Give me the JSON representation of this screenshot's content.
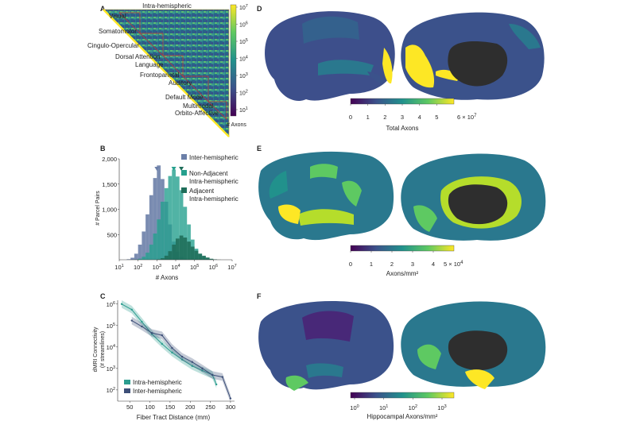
{
  "panels": {
    "A": {
      "letter": "A",
      "title": "Intra-hemispheric",
      "networks": [
        "Visual",
        "Somatomotor",
        "Cingulo-Opercular",
        "Dorsal Attention",
        "Language",
        "Frontoparietal",
        "Auditory",
        "Default Mode",
        "Multimodal",
        "Orbito-Affective"
      ],
      "colorbar": {
        "ticks": [
          {
            "base": "10",
            "exp": "7"
          },
          {
            "base": "10",
            "exp": "6"
          },
          {
            "base": "10",
            "exp": "5"
          },
          {
            "base": "10",
            "exp": "4"
          },
          {
            "base": "10",
            "exp": "3"
          },
          {
            "base": "10",
            "exp": "2"
          },
          {
            "base": "10",
            "exp": "1"
          }
        ],
        "label": "# Axons"
      },
      "colors": {
        "low": "#440154",
        "mid": "#21918c",
        "high": "#fde725"
      }
    },
    "B": {
      "letter": "B",
      "ylabel": "# Parcel Pairs",
      "xlabel": "# Axons",
      "legend": [
        {
          "label": "Inter-hemispheric",
          "color": "#6b7fa8"
        },
        {
          "label": "Non-Adjacent",
          "label2": "Intra-hemispheric",
          "color": "#26a08e"
        },
        {
          "label": "Adjacent",
          "label2": "Intra-hemispheric",
          "color": "#1f6e5a"
        }
      ]
    },
    "C": {
      "letter": "C",
      "ylabel1": "dMRI Connectivity",
      "ylabel2": "(# streamlines)",
      "xlabel": "Fiber Tract Distance (mm)",
      "legend": [
        {
          "label": "Intra-hemispheric",
          "color": "#2b9d8f"
        },
        {
          "label": "Inter-hemispheric",
          "color": "#3d4f78"
        }
      ]
    },
    "D": {
      "letter": "D",
      "colorbar_label": "Total Axons",
      "ticks": [
        "0",
        "1",
        "2",
        "3",
        "4",
        "5"
      ],
      "mult_base": "6 × 10",
      "mult_exp": "7"
    },
    "E": {
      "letter": "E",
      "colorbar_label": "Axons/mm²",
      "ticks": [
        "0",
        "1",
        "2",
        "3",
        "4"
      ],
      "mult_base": "5 × 10",
      "mult_exp": "4"
    },
    "F": {
      "letter": "F",
      "colorbar_label": "Hippocampal Axons/mm²",
      "ticks": [
        {
          "base": "10",
          "exp": "0"
        },
        {
          "base": "10",
          "exp": "1"
        },
        {
          "base": "10",
          "exp": "2"
        },
        {
          "base": "10",
          "exp": "3"
        }
      ]
    }
  },
  "chart_data": [
    {
      "type": "bar",
      "panel": "B",
      "x_scale": "log",
      "x_tick_labels": [
        "10^1",
        "10^2",
        "10^3",
        "10^4",
        "10^5",
        "10^6",
        "10^7"
      ],
      "y_tick_labels": [
        "500",
        "1,000",
        "1,500",
        "2,000"
      ],
      "xlabel": "# Axons",
      "ylabel": "# Parcel Pairs",
      "xlim": [
        10,
        10000000
      ],
      "ylim": [
        0,
        2000
      ],
      "bin_log_centers": [
        1.5,
        1.7,
        1.9,
        2.1,
        2.3,
        2.5,
        2.7,
        2.9,
        3.1,
        3.3,
        3.5,
        3.7,
        3.9,
        4.1,
        4.3,
        4.5,
        4.7,
        4.9,
        5.1,
        5.3,
        5.5,
        5.7,
        5.9,
        6.1,
        6.3
      ],
      "series": [
        {
          "name": "Inter-hemispheric",
          "values": [
            10,
            40,
            120,
            300,
            560,
            900,
            1280,
            1620,
            1870,
            1600,
            1150,
            700,
            360,
            160,
            60,
            20,
            5,
            0,
            0,
            0,
            0,
            0,
            0,
            0,
            0
          ]
        },
        {
          "name": "Non-Adjacent Intra-hemispheric",
          "values": [
            0,
            0,
            5,
            20,
            60,
            140,
            300,
            520,
            800,
            1150,
            1420,
            1660,
            1790,
            1650,
            1380,
            1050,
            700,
            400,
            220,
            120,
            60,
            25,
            10,
            3,
            0
          ]
        },
        {
          "name": "Adjacent Intra-hemispheric",
          "values": [
            0,
            0,
            0,
            0,
            0,
            0,
            0,
            0,
            10,
            30,
            80,
            170,
            300,
            420,
            480,
            440,
            360,
            260,
            180,
            120,
            80,
            45,
            20,
            8,
            2
          ]
        }
      ]
    },
    {
      "type": "line",
      "panel": "C",
      "y_scale": "log",
      "x_tick_labels": [
        "50",
        "100",
        "150",
        "200",
        "250",
        "300"
      ],
      "y_tick_labels": [
        "10^2",
        "10^3",
        "10^4",
        "10^5",
        "10^6"
      ],
      "xlabel": "Fiber Tract Distance (mm)",
      "ylabel": "dMRI Connectivity (# streamlines)",
      "xlim": [
        20,
        310
      ],
      "ylim": [
        30,
        1500000
      ],
      "series": [
        {
          "name": "Intra-hemispheric",
          "x": [
            30,
            55,
            80,
            105,
            130,
            155,
            180,
            205,
            230,
            255,
            265
          ],
          "y": [
            1000000,
            550000,
            150000,
            40000,
            14000,
            5500,
            2600,
            1300,
            800,
            500,
            180
          ]
        },
        {
          "name": "Inter-hemispheric",
          "x": [
            55,
            80,
            105,
            130,
            155,
            180,
            205,
            230,
            255,
            280,
            300
          ],
          "y": [
            170000,
            90000,
            45000,
            35000,
            9000,
            3500,
            2000,
            1000,
            500,
            400,
            40
          ]
        }
      ]
    }
  ]
}
